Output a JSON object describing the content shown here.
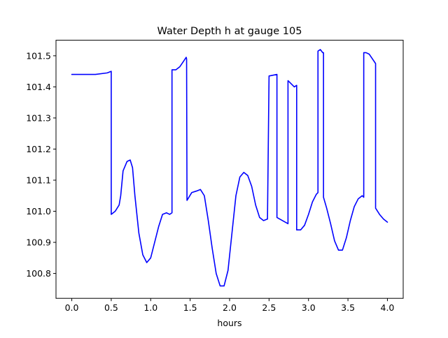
{
  "chart_data": {
    "type": "line",
    "title": "Water Depth h at gauge 105",
    "xlabel": "hours",
    "ylabel": "",
    "xlim": [
      -0.2,
      4.2
    ],
    "ylim": [
      100.72,
      101.55
    ],
    "grid": false,
    "x_ticks": [
      0.0,
      0.5,
      1.0,
      1.5,
      2.0,
      2.5,
      3.0,
      3.5,
      4.0
    ],
    "x_tick_labels": [
      "0.0",
      "0.5",
      "1.0",
      "1.5",
      "2.0",
      "2.5",
      "3.0",
      "3.5",
      "4.0"
    ],
    "y_ticks": [
      100.8,
      100.9,
      101.0,
      101.1,
      101.2,
      101.3,
      101.4,
      101.5
    ],
    "y_tick_labels": [
      "100.8",
      "100.9",
      "101.0",
      "101.1",
      "101.2",
      "101.3",
      "101.4",
      "101.5"
    ],
    "series": [
      {
        "color": "#0000ff",
        "x": [
          0.0,
          0.3,
          0.45,
          0.5,
          0.5,
          0.55,
          0.6,
          0.62,
          0.65,
          0.7,
          0.74,
          0.77,
          0.8,
          0.85,
          0.9,
          0.95,
          1.0,
          1.05,
          1.1,
          1.15,
          1.2,
          1.24,
          1.27,
          1.27,
          1.32,
          1.37,
          1.41,
          1.45,
          1.455,
          1.46,
          1.52,
          1.58,
          1.63,
          1.68,
          1.73,
          1.78,
          1.83,
          1.88,
          1.93,
          1.98,
          2.03,
          2.08,
          2.13,
          2.18,
          2.23,
          2.28,
          2.33,
          2.38,
          2.43,
          2.48,
          2.5,
          2.5,
          2.6,
          2.6,
          2.74,
          2.74,
          2.78,
          2.82,
          2.85,
          2.85,
          2.9,
          2.95,
          3.0,
          3.05,
          3.1,
          3.12,
          3.12,
          3.15,
          3.18,
          3.19,
          3.19,
          3.23,
          3.28,
          3.33,
          3.38,
          3.43,
          3.48,
          3.53,
          3.58,
          3.63,
          3.68,
          3.7,
          3.7,
          3.73,
          3.77,
          3.81,
          3.85,
          3.85,
          3.9,
          3.95,
          4.0
        ],
        "y": [
          101.44,
          101.44,
          101.445,
          101.45,
          100.99,
          101.0,
          101.02,
          101.05,
          101.13,
          101.16,
          101.165,
          101.14,
          101.05,
          100.93,
          100.86,
          100.835,
          100.85,
          100.9,
          100.95,
          100.99,
          100.995,
          100.99,
          100.995,
          101.455,
          101.455,
          101.465,
          101.48,
          101.495,
          101.49,
          101.035,
          101.06,
          101.065,
          101.07,
          101.05,
          100.97,
          100.88,
          100.8,
          100.76,
          100.76,
          100.81,
          100.93,
          101.05,
          101.11,
          101.125,
          101.115,
          101.08,
          101.02,
          100.98,
          100.97,
          100.975,
          101.435,
          101.435,
          101.44,
          100.98,
          100.96,
          101.42,
          101.41,
          101.4,
          101.405,
          100.94,
          100.94,
          100.955,
          100.99,
          101.03,
          101.055,
          101.06,
          101.515,
          101.52,
          101.51,
          101.51,
          101.045,
          101.01,
          100.96,
          100.905,
          100.875,
          100.875,
          100.915,
          100.97,
          101.015,
          101.04,
          101.05,
          101.045,
          101.51,
          101.51,
          101.505,
          101.49,
          101.475,
          101.01,
          100.99,
          100.975,
          100.965
        ]
      }
    ]
  }
}
